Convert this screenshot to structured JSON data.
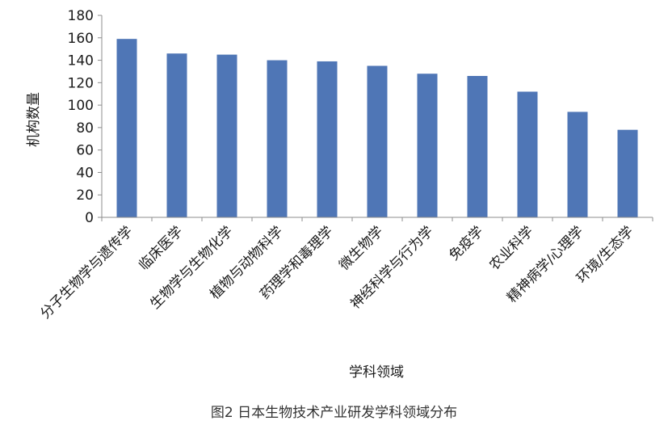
{
  "chart_data": {
    "type": "bar",
    "categories": [
      "分子生物学与遗传学",
      "临床医学",
      "生物学与生物化学",
      "植物与动物科学",
      "药理学和毒理学",
      "微生物学",
      "神经科学与行为学",
      "免疫学",
      "农业科学",
      "精神病学/心理学",
      "环境/生态学"
    ],
    "values": [
      159,
      146,
      145,
      140,
      139,
      135,
      128,
      126,
      112,
      94,
      78
    ],
    "yticks": [
      "0",
      "20",
      "40",
      "60",
      "80",
      "100",
      "120",
      "140",
      "160",
      "180"
    ],
    "ylim": [
      0,
      180
    ],
    "xlabel": "学科领域",
    "ylabel": "机构数量",
    "bar_color": "#4f76b6",
    "axis_color": "#8c8c8c",
    "grid": false,
    "legend": "none"
  },
  "caption": "图2  日本生物技术产业研发学科领域分布"
}
